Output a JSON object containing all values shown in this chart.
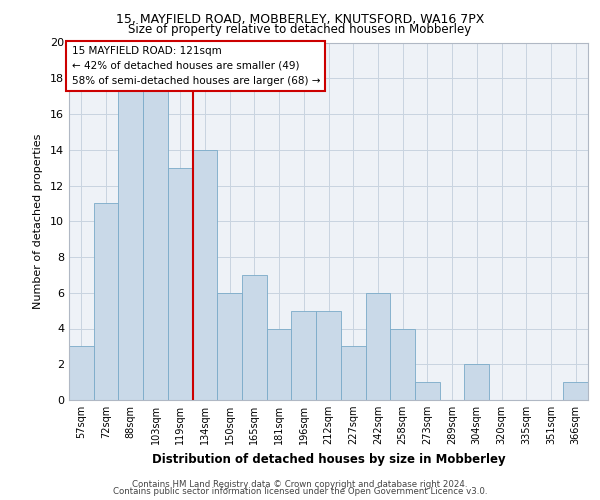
{
  "title": "15, MAYFIELD ROAD, MOBBERLEY, KNUTSFORD, WA16 7PX",
  "subtitle": "Size of property relative to detached houses in Mobberley",
  "xlabel": "Distribution of detached houses by size in Mobberley",
  "ylabel": "Number of detached properties",
  "footer_line1": "Contains HM Land Registry data © Crown copyright and database right 2024.",
  "footer_line2": "Contains public sector information licensed under the Open Government Licence v3.0.",
  "annotation_title": "15 MAYFIELD ROAD: 121sqm",
  "annotation_line1": "← 42% of detached houses are smaller (49)",
  "annotation_line2": "58% of semi-detached houses are larger (68) →",
  "bar_categories": [
    "57sqm",
    "72sqm",
    "88sqm",
    "103sqm",
    "119sqm",
    "134sqm",
    "150sqm",
    "165sqm",
    "181sqm",
    "196sqm",
    "212sqm",
    "227sqm",
    "242sqm",
    "258sqm",
    "273sqm",
    "289sqm",
    "304sqm",
    "320sqm",
    "335sqm",
    "351sqm",
    "366sqm"
  ],
  "bar_values": [
    3,
    11,
    18,
    18,
    13,
    14,
    6,
    7,
    4,
    5,
    5,
    3,
    6,
    4,
    1,
    0,
    2,
    0,
    0,
    0,
    1
  ],
  "bar_color": "#c9d9e8",
  "bar_edge_color": "#7aaac8",
  "vline_color": "#cc0000",
  "vline_x": 4.5,
  "annotation_box_color": "#cc0000",
  "grid_color": "#c8d4e0",
  "bg_color": "#eef2f7",
  "ylim": [
    0,
    20
  ],
  "yticks": [
    0,
    2,
    4,
    6,
    8,
    10,
    12,
    14,
    16,
    18,
    20
  ]
}
